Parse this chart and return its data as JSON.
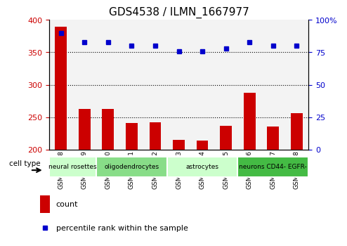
{
  "title": "GDS4538 / ILMN_1667977",
  "samples": [
    "GSM997558",
    "GSM997559",
    "GSM997560",
    "GSM997561",
    "GSM997562",
    "GSM997563",
    "GSM997564",
    "GSM997565",
    "GSM997566",
    "GSM997567",
    "GSM997568"
  ],
  "counts": [
    390,
    262,
    263,
    241,
    242,
    215,
    214,
    236,
    288,
    235,
    256
  ],
  "percentiles": [
    90,
    83,
    83,
    80,
    80,
    76,
    76,
    78,
    83,
    80,
    80
  ],
  "ylim_left": [
    200,
    400
  ],
  "ylim_right": [
    0,
    100
  ],
  "yticks_left": [
    200,
    250,
    300,
    350,
    400
  ],
  "yticks_right": [
    0,
    25,
    50,
    75,
    100
  ],
  "bar_color": "#cc0000",
  "dot_color": "#0000cc",
  "cell_types": [
    {
      "label": "neural rosettes",
      "start": 0,
      "end": 2,
      "color": "#ccffcc"
    },
    {
      "label": "oligodendrocytes",
      "start": 2,
      "end": 5,
      "color": "#88dd88"
    },
    {
      "label": "astrocytes",
      "start": 5,
      "end": 8,
      "color": "#ccffcc"
    },
    {
      "label": "neurons CD44- EGFR-",
      "start": 8,
      "end": 11,
      "color": "#44bb44"
    }
  ],
  "legend_count_label": "count",
  "legend_pct_label": "percentile rank within the sample",
  "cell_type_label": "cell type",
  "sample_bg_color": "#dddddd"
}
